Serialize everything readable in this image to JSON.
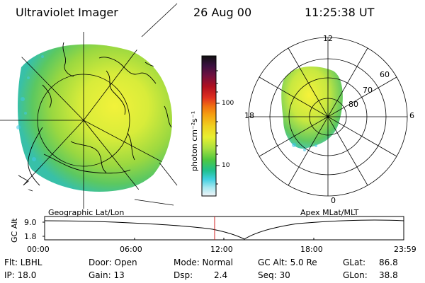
{
  "header": {
    "instrument": "Ultraviolet Imager",
    "date": "26 Aug 00",
    "time": "11:25:38 UT"
  },
  "colorbar": {
    "unit_label": "photon cm⁻²s⁻¹",
    "ticks": [
      "100",
      "10"
    ],
    "colors": [
      "#101010",
      "#3a1040",
      "#6a1040",
      "#a01020",
      "#d02020",
      "#f05010",
      "#f59010",
      "#f0c020",
      "#f0f030",
      "#b0e040",
      "#60d040",
      "#30c060",
      "#20c0b0",
      "#40d0e0",
      "#a0e8f0",
      "#e8f4f8"
    ]
  },
  "left_panel": {
    "caption": "Geographic Lat/Lon"
  },
  "right_panel": {
    "caption": "Apex MLat/MLT",
    "mlt_labels": {
      "top": "12",
      "left": "18",
      "right": "6",
      "bottom": "0"
    },
    "mlat_labels": [
      "60",
      "70",
      "80"
    ]
  },
  "altitude_plot": {
    "ylabel": "GC Alt",
    "y_ticks": [
      "9.0",
      "1.8"
    ],
    "x_ticks": [
      "00:00",
      "06:00",
      "12:00",
      "18:00",
      "23:59"
    ],
    "marker_color": "#d02020"
  },
  "status": {
    "r1": {
      "filter": "Flt: LBHL",
      "door": "Door: Open",
      "mode": "Mode: Normal",
      "gc_alt": "GC Alt: 5.0 Re",
      "glat_label": "GLat:",
      "glat_value": "86.8"
    },
    "r2": {
      "ip": "IP: 18.0",
      "gain": "Gain: 13",
      "dsp_label": "Dsp:",
      "dsp_value": "2.4",
      "seq": "Seq: 30",
      "glon_label": "GLon:",
      "glon_value": "38.8"
    }
  }
}
